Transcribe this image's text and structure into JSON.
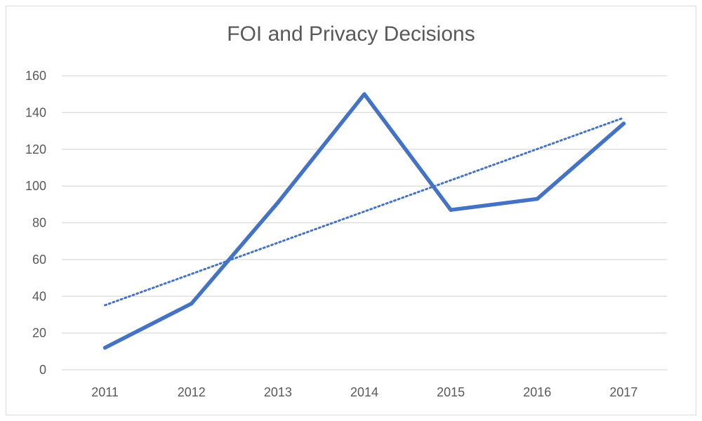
{
  "chart_data": {
    "type": "line",
    "title": "FOI and Privacy Decisions",
    "xlabel": "",
    "ylabel": "",
    "categories": [
      "2011",
      "2012",
      "2013",
      "2014",
      "2015",
      "2016",
      "2017"
    ],
    "series": [
      {
        "values": [
          12,
          36,
          91,
          150,
          87,
          93,
          134
        ],
        "color": "#4472c4",
        "style": "solid"
      }
    ],
    "trendline": {
      "type": "linear",
      "color": "#4472c4",
      "style": "dotted"
    },
    "ylim": [
      0,
      160
    ],
    "yticks": [
      0,
      20,
      40,
      60,
      80,
      100,
      120,
      140,
      160
    ],
    "grid": true,
    "legend": "none"
  }
}
